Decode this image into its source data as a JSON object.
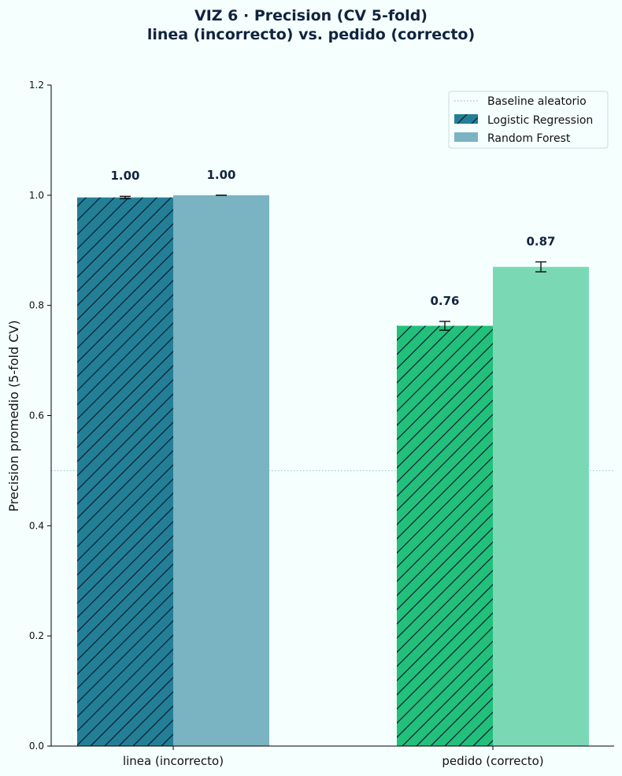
{
  "chart_data": {
    "type": "bar",
    "title": "VIZ 6 · Precision (CV 5-fold)",
    "subtitle": "linea (incorrecto) vs. pedido (correcto)",
    "ylabel": "Precision promedio (5-fold CV)",
    "xlabel": "",
    "ylim": [
      0,
      1.2
    ],
    "yticks": [
      "0.0",
      "0.2",
      "0.4",
      "0.6",
      "0.8",
      "1.0",
      "1.2"
    ],
    "categories": [
      "linea (incorrecto)",
      "pedido (correcto)"
    ],
    "series": [
      {
        "name": "Logistic Regression",
        "values": [
          0.996,
          0.763
        ],
        "errors": [
          0.002,
          0.008
        ],
        "labels": [
          "1.00",
          "0.76"
        ],
        "hatched": true,
        "colors": [
          "#237f96",
          "#22c07a"
        ]
      },
      {
        "name": "Random Forest",
        "values": [
          1.0,
          0.87
        ],
        "errors": [
          0.0,
          0.009
        ],
        "labels": [
          "1.00",
          "0.87"
        ],
        "hatched": false,
        "colors": [
          "#7ab3c2",
          "#7ad9b4"
        ]
      }
    ],
    "baseline": {
      "name": "Baseline aleatorio",
      "value": 0.5
    },
    "legend_position": "top-right",
    "grid": false
  }
}
